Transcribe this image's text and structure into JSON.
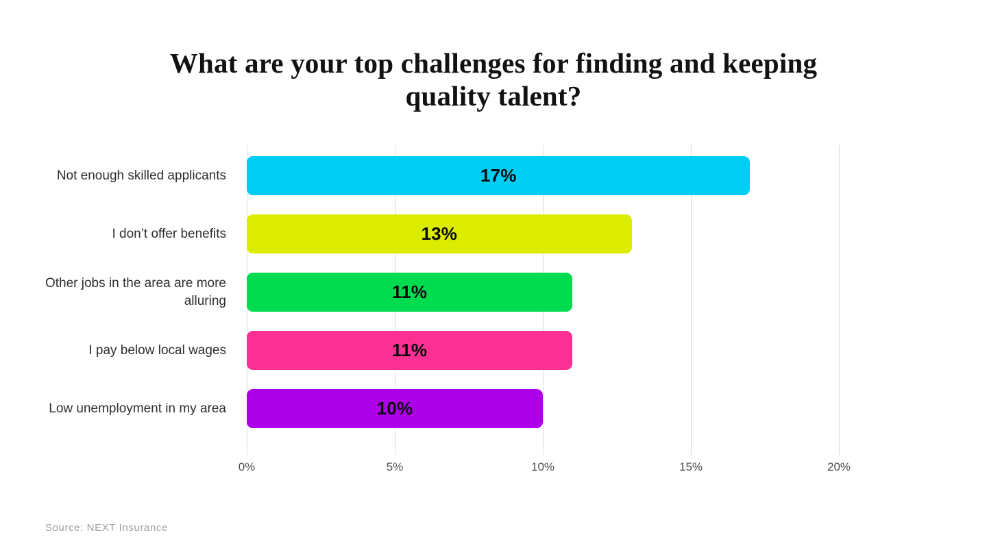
{
  "title": {
    "text": "What are your top challenges for finding and keeping quality talent?"
  },
  "source": "Source: NEXT Insurance",
  "chart_data": {
    "type": "bar",
    "orientation": "horizontal",
    "title": "What are your top challenges for finding and keeping quality talent?",
    "categories": [
      "Not enough skilled applicants",
      "I don’t offer benefits",
      "Other jobs in the area are more alluring",
      "I pay below local wages",
      "Low unemployment in my area"
    ],
    "values": [
      17,
      13,
      11,
      11,
      10
    ],
    "value_labels": [
      "17%",
      "13%",
      "11%",
      "11%",
      "10%"
    ],
    "bar_colors": [
      "#00CDF4",
      "#DCEC00",
      "#00DC50",
      "#FC3093",
      "#AD00E8"
    ],
    "x_ticks": [
      "0%",
      "5%",
      "10%",
      "15%",
      "20%"
    ],
    "x_tick_values": [
      0,
      5,
      10,
      15,
      20
    ],
    "xlim": [
      0,
      20
    ],
    "grid": true,
    "legend": false,
    "value_label_position": "center-inside",
    "source": "Source: NEXT Insurance"
  }
}
